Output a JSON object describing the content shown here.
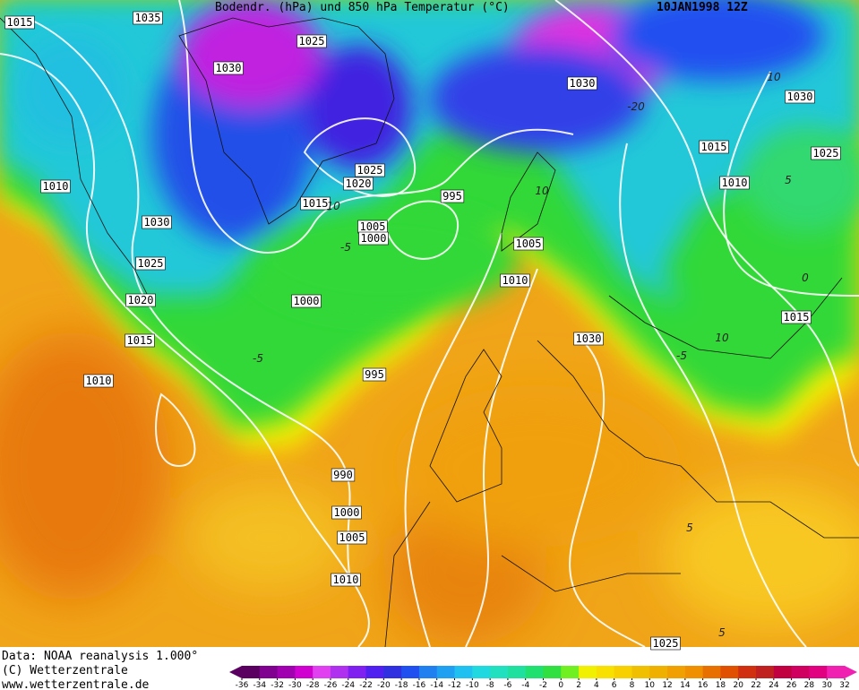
{
  "header": {
    "title": "Bodendr. (hPa) und 850 hPa Temperatur (°C)",
    "date": "10JAN1998 12Z"
  },
  "isobar_labels": [
    "1015",
    "1035",
    "1025",
    "1030",
    "1030",
    "1030",
    "1015",
    "1025",
    "1010",
    "1025",
    "1020",
    "1015",
    "995",
    "1010",
    "1030",
    "1005",
    "1000",
    "1005",
    "1025",
    "1010",
    "1020",
    "1000",
    "1015",
    "1015",
    "1030",
    "1010",
    "995",
    "990",
    "1000",
    "1005",
    "1010",
    "1025"
  ],
  "isotherm_labels": [
    "10",
    "-20",
    "10",
    "-5",
    "-5",
    "5",
    "-10",
    "10",
    "5",
    "5",
    "0",
    "-5"
  ],
  "footer": {
    "data": "Data: NOAA reanalysis 1.000°",
    "copyright": "(C) Wetterzentrale",
    "url": "www.wetterzentrale.de"
  },
  "colorbar": {
    "ticks": [
      -36,
      -34,
      -32,
      -30,
      -28,
      -26,
      -24,
      -22,
      -20,
      -18,
      -16,
      -14,
      -12,
      -10,
      -8,
      -6,
      -4,
      -2,
      0,
      2,
      4,
      6,
      8,
      10,
      12,
      14,
      16,
      18,
      20,
      22,
      24,
      26,
      28,
      30,
      32
    ],
    "colors": [
      "#5a0060",
      "#800090",
      "#a000b0",
      "#d000d0",
      "#e040f0",
      "#b030f0",
      "#8020f0",
      "#5020f0",
      "#3030e0",
      "#2050f0",
      "#2080f0",
      "#20a0f0",
      "#20c0f0",
      "#20d8e0",
      "#20e0c0",
      "#20e0a0",
      "#20e070",
      "#30e040",
      "#70f020",
      "#f0f000",
      "#f8e000",
      "#f8d000",
      "#f0c000",
      "#f0b000",
      "#f0a000",
      "#f09000",
      "#e87000",
      "#e05000",
      "#d03010",
      "#c02020",
      "#c00040",
      "#d00060",
      "#e00080",
      "#f020b0"
    ]
  }
}
